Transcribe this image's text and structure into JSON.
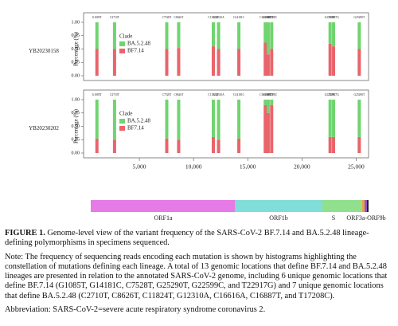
{
  "chart_data": [
    {
      "type": "stacked-bar",
      "title": "YB20230158",
      "ylabel": "Percentage (%)",
      "legend_title": "Clade",
      "grid": false,
      "x": [
        1085,
        2710,
        7528,
        8626,
        11824,
        12310,
        14181,
        16616,
        16887,
        17208,
        22599,
        22917,
        25290
      ],
      "annotations": [
        "G1085T",
        "C2710T",
        "C7528T",
        "C8626T",
        "C11824T",
        "G12310A",
        "G14181C",
        "C16616A",
        "C16887T",
        "T17208C",
        "G22599C",
        "T22917G",
        "G25290T"
      ],
      "series": [
        {
          "name": "BA.5.2.48",
          "color": "#70d46f",
          "values": [
            0.5,
            0.5,
            0.5,
            0.48,
            0.45,
            0.5,
            0.5,
            0.38,
            0.6,
            0.5,
            0.4,
            0.45,
            0.5
          ]
        },
        {
          "name": "BF7.14",
          "color": "#e9646b",
          "values": [
            0.5,
            0.5,
            0.5,
            0.52,
            0.55,
            0.5,
            0.5,
            0.62,
            0.4,
            0.5,
            0.6,
            0.55,
            0.5
          ]
        }
      ],
      "xlim": [
        0,
        26000
      ],
      "ylim": [
        0,
        1
      ],
      "yticks": [
        {
          "value": 0,
          "label": "0.00"
        },
        {
          "value": 0.25,
          "label": "0.25"
        },
        {
          "value": 0.5,
          "label": "0.50"
        },
        {
          "value": 0.75,
          "label": "0.75"
        },
        {
          "value": 1,
          "label": "1.00"
        }
      ]
    },
    {
      "type": "stacked-bar",
      "title": "YB20230202",
      "ylabel": "Percentage (%)",
      "legend_title": "Clade",
      "grid": false,
      "x": [
        1085,
        2710,
        7528,
        8626,
        11824,
        12310,
        14181,
        16616,
        16887,
        17208,
        22599,
        22917,
        25290
      ],
      "annotations": [
        "G1085T",
        "C2710T",
        "C7528T",
        "C8626T",
        "C11824T",
        "G12310A",
        "G14181C",
        "C16616A",
        "C16887T",
        "T17208C",
        "G22599C",
        "T22917G",
        "G25290T"
      ],
      "series": [
        {
          "name": "BA.5.2.48",
          "color": "#70d46f",
          "values": [
            0.73,
            0.75,
            0.73,
            0.75,
            0.7,
            0.75,
            0.73,
            0.1,
            0.25,
            0.1,
            0.7,
            0.7,
            0.7
          ]
        },
        {
          "name": "BF7.14",
          "color": "#e9646b",
          "values": [
            0.27,
            0.25,
            0.27,
            0.25,
            0.3,
            0.25,
            0.27,
            0.9,
            0.75,
            0.9,
            0.3,
            0.3,
            0.3
          ]
        }
      ],
      "xlim": [
        0,
        26000
      ],
      "ylim": [
        0,
        1
      ],
      "yticks": [
        {
          "value": 0,
          "label": "0.00"
        },
        {
          "value": 0.25,
          "label": "0.25"
        },
        {
          "value": 0.5,
          "label": "0.50"
        },
        {
          "value": 0.75,
          "label": "0.75"
        },
        {
          "value": 1,
          "label": "1.00"
        }
      ],
      "xticks": [
        {
          "value": 5000,
          "label": "5,000"
        },
        {
          "value": 10000,
          "label": "10,000"
        },
        {
          "value": 15000,
          "label": "15,000"
        },
        {
          "value": 20000,
          "label": "20,000"
        },
        {
          "value": 25000,
          "label": "25,000"
        }
      ]
    }
  ],
  "genome_map": {
    "labels": [
      "ORF1a",
      "ORF1b",
      "S",
      "ORF3a-ORF9b"
    ]
  },
  "caption": {
    "label": "FIGURE 1.",
    "text": "Genome-level view of the variant frequency of the SARS-CoV-2 BF.7.14 and BA.5.2.48 lineage-defining polymorphisms in specimens sequenced.",
    "note": "Note: The frequency of sequencing reads encoding each mutation is shown by histograms highlighting the constellation of mutations defining each lineage. A total of 13 genomic locations that define BF.7.14 and BA.5.2.48 lineages are presented in relation to the annotated SARS-CoV-2 genome, including 6 unique genomic locations that define BF.7.14 (G1085T, G14181C, C7528T, G25290T, G22599C, and T22917G) and 7 unique genomic locations that define BA.5.2.48 (C2710T, C8626T, C11824T, G12310A, C16616A, C16887T, and T17208C).",
    "abbreviation": "Abbreviation: SARS-CoV-2=severe acute respiratory syndrome coronavirus 2."
  }
}
